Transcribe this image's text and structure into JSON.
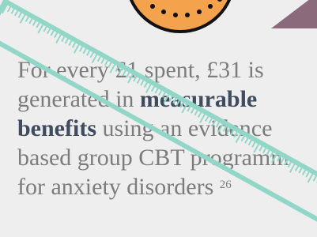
{
  "lines": [
    {
      "text": "For every £1 spent, £31 is"
    },
    {
      "text": "generated in ",
      "bold": "measurable"
    },
    {
      "bold_first": "benefits",
      "text": " using an evidence"
    },
    {
      "text": "based group CBT programm"
    },
    {
      "text": "for anxiety disorders ",
      "footnote": "26"
    }
  ]
}
